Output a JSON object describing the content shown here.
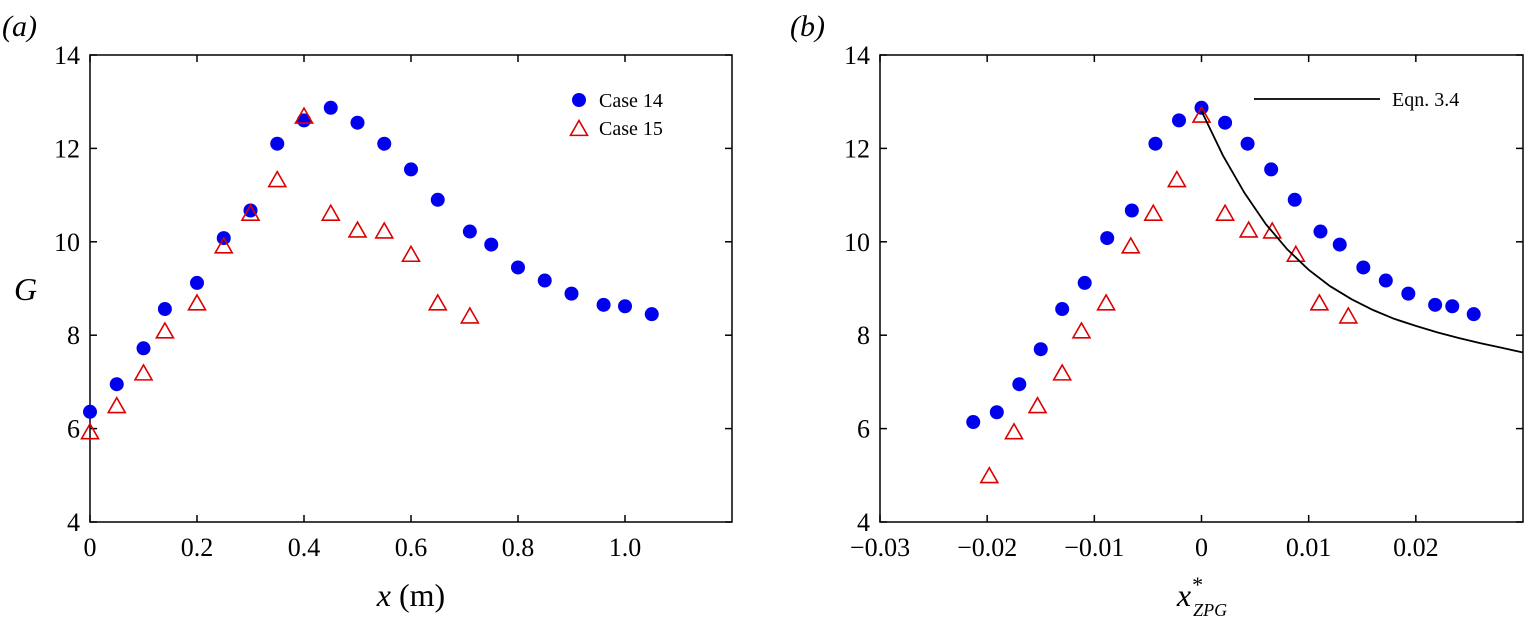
{
  "chart_data": [
    {
      "type": "scatter",
      "panel_label": "(a)",
      "xlabel": "x (m)",
      "ylabel": "G",
      "xlim": [
        0,
        1.2
      ],
      "ylim": [
        4,
        14
      ],
      "xticks": [
        {
          "value": 0,
          "label": "0"
        },
        {
          "value": 0.2,
          "label": "0.2"
        },
        {
          "value": 0.4,
          "label": "0.4"
        },
        {
          "value": 0.6,
          "label": "0.6"
        },
        {
          "value": 0.8,
          "label": "0.8"
        },
        {
          "value": 1.0,
          "label": "1.0"
        }
      ],
      "yticks": [
        {
          "value": 4,
          "label": "4"
        },
        {
          "value": 6,
          "label": "6"
        },
        {
          "value": 8,
          "label": "8"
        },
        {
          "value": 10,
          "label": "10"
        },
        {
          "value": 12,
          "label": "12"
        },
        {
          "value": 14,
          "label": "14"
        }
      ],
      "grid": false,
      "legend_position": "top-right",
      "series": [
        {
          "name": "Case 14",
          "marker": "filled-circle",
          "color": "#0000ee",
          "x": [
            0.0,
            0.05,
            0.1,
            0.14,
            0.2,
            0.25,
            0.3,
            0.35,
            0.4,
            0.45,
            0.5,
            0.55,
            0.6,
            0.65,
            0.71,
            0.75,
            0.8,
            0.85,
            0.9,
            0.96,
            1.0,
            1.05
          ],
          "y": [
            6.36,
            6.95,
            7.72,
            8.56,
            9.12,
            10.08,
            10.67,
            12.1,
            12.6,
            12.87,
            12.55,
            12.1,
            11.55,
            10.9,
            10.22,
            9.94,
            9.45,
            9.17,
            8.89,
            8.65,
            8.62,
            8.45
          ]
        },
        {
          "name": "Case 15",
          "marker": "open-triangle",
          "color": "#dd0000",
          "x": [
            0.0,
            0.05,
            0.1,
            0.14,
            0.2,
            0.25,
            0.3,
            0.35,
            0.4,
            0.45,
            0.5,
            0.55,
            0.6,
            0.65,
            0.71
          ],
          "y": [
            5.92,
            6.48,
            7.18,
            8.08,
            8.68,
            9.9,
            10.6,
            11.32,
            12.68,
            10.6,
            10.24,
            10.22,
            9.72,
            8.68,
            8.4
          ]
        }
      ]
    },
    {
      "type": "scatter",
      "panel_label": "(b)",
      "xlabel_base": "x",
      "xlabel_sup": "*",
      "xlabel_sub": "ZPG",
      "ylabel": "",
      "xlim": [
        -0.03,
        0.03
      ],
      "ylim": [
        4,
        14
      ],
      "xticks": [
        {
          "value": -0.03,
          "label": "−0.03"
        },
        {
          "value": -0.02,
          "label": "−0.02"
        },
        {
          "value": -0.01,
          "label": "−0.01"
        },
        {
          "value": 0,
          "label": "0"
        },
        {
          "value": 0.01,
          "label": "0.01"
        },
        {
          "value": 0.02,
          "label": "0.02"
        }
      ],
      "yticks": [
        {
          "value": 4,
          "label": "4"
        },
        {
          "value": 6,
          "label": "6"
        },
        {
          "value": 8,
          "label": "8"
        },
        {
          "value": 10,
          "label": "10"
        },
        {
          "value": 12,
          "label": "12"
        },
        {
          "value": 14,
          "label": "14"
        }
      ],
      "grid": false,
      "legend_position": "top-right",
      "series": [
        {
          "name": "",
          "marker": "filled-circle",
          "color": "#0000ee",
          "x": [
            -0.0213,
            -0.0191,
            -0.017,
            -0.015,
            -0.013,
            -0.0109,
            -0.0088,
            -0.0065,
            -0.0043,
            -0.0021,
            0.0,
            0.0022,
            0.0043,
            0.0065,
            0.0087,
            0.0111,
            0.0129,
            0.0151,
            0.0172,
            0.0193,
            0.0218,
            0.0234,
            0.0254
          ],
          "y": [
            6.14,
            6.35,
            6.95,
            7.7,
            8.56,
            9.12,
            10.08,
            10.67,
            12.1,
            12.6,
            12.87,
            12.55,
            12.1,
            11.55,
            10.9,
            10.22,
            9.94,
            9.45,
            9.17,
            8.89,
            8.65,
            8.62,
            8.45
          ]
        },
        {
          "name": "",
          "marker": "open-triangle",
          "color": "#dd0000",
          "x": [
            -0.0198,
            -0.0175,
            -0.0153,
            -0.013,
            -0.0112,
            -0.0089,
            -0.0066,
            -0.0045,
            -0.0023,
            0.0,
            0.0022,
            0.0044,
            0.0066,
            0.0088,
            0.011,
            0.0137
          ],
          "y": [
            4.98,
            5.92,
            6.48,
            7.18,
            8.08,
            8.68,
            9.9,
            10.6,
            11.32,
            12.7,
            10.6,
            10.24,
            10.22,
            9.72,
            8.68,
            8.4
          ]
        },
        {
          "name": "Eqn. 3.4",
          "style": "line",
          "color": "#000000",
          "x": [
            0.0,
            0.002,
            0.004,
            0.006,
            0.008,
            0.01,
            0.012,
            0.014,
            0.016,
            0.018,
            0.02,
            0.022,
            0.024,
            0.026,
            0.028,
            0.03
          ],
          "y": [
            12.8,
            11.85,
            11.05,
            10.38,
            9.84,
            9.4,
            9.05,
            8.77,
            8.54,
            8.35,
            8.2,
            8.06,
            7.94,
            7.83,
            7.73,
            7.63
          ]
        }
      ]
    }
  ]
}
